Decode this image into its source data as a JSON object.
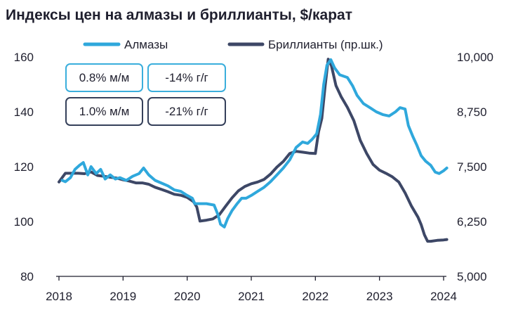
{
  "title": "Индексы цен на алмазы и бриллианты, $/карат",
  "colors": {
    "diamonds": "#2fa8dc",
    "polished": "#3d4766",
    "axis": "#1f1f2e"
  },
  "boxes": [
    {
      "text": "0.8% м/м",
      "series": "diamonds"
    },
    {
      "text": "-14% г/г",
      "series": "diamonds"
    },
    {
      "text": "1.0% м/м",
      "series": "polished"
    },
    {
      "text": "-21% г/г",
      "series": "polished"
    }
  ],
  "chart_data": {
    "type": "line",
    "title": "Индексы цен на алмазы и бриллианты, $/карат",
    "x_ticks": [
      "2018",
      "2019",
      "2020",
      "2021",
      "2022",
      "2023",
      "2024"
    ],
    "y_left": {
      "ticks": [
        "80",
        "100",
        "120",
        "140",
        "160"
      ],
      "range": [
        80,
        160
      ]
    },
    "y_right": {
      "ticks": [
        "5,000",
        "6,250",
        "7,500",
        "8,750",
        "10,000"
      ],
      "range": [
        5000,
        10000
      ]
    },
    "grid": false,
    "legend": "top",
    "series": [
      {
        "name": "Алмазы",
        "axis": "left",
        "color": "#2fa8dc",
        "points": [
          [
            2018.05,
            115
          ],
          [
            2018.1,
            114.5
          ],
          [
            2018.18,
            116
          ],
          [
            2018.25,
            119
          ],
          [
            2018.32,
            120.5
          ],
          [
            2018.38,
            121.5
          ],
          [
            2018.45,
            117
          ],
          [
            2018.5,
            120
          ],
          [
            2018.58,
            117.5
          ],
          [
            2018.65,
            119
          ],
          [
            2018.72,
            115.5
          ],
          [
            2018.8,
            117
          ],
          [
            2018.88,
            115.5
          ],
          [
            2018.95,
            116
          ],
          [
            2019.05,
            115
          ],
          [
            2019.15,
            116.5
          ],
          [
            2019.25,
            117.5
          ],
          [
            2019.32,
            119.5
          ],
          [
            2019.4,
            117
          ],
          [
            2019.5,
            115
          ],
          [
            2019.6,
            114
          ],
          [
            2019.7,
            113
          ],
          [
            2019.8,
            111.5
          ],
          [
            2019.9,
            111
          ],
          [
            2020.0,
            109.5
          ],
          [
            2020.08,
            108.5
          ],
          [
            2020.12,
            106.5
          ],
          [
            2020.2,
            106.5
          ],
          [
            2020.3,
            106.5
          ],
          [
            2020.42,
            106
          ],
          [
            2020.48,
            102.5
          ],
          [
            2020.52,
            99
          ],
          [
            2020.58,
            98
          ],
          [
            2020.63,
            101
          ],
          [
            2020.7,
            104
          ],
          [
            2020.78,
            106.5
          ],
          [
            2020.85,
            108.5
          ],
          [
            2020.92,
            108.5
          ],
          [
            2021.0,
            109.5
          ],
          [
            2021.1,
            111
          ],
          [
            2021.2,
            112.5
          ],
          [
            2021.3,
            114.5
          ],
          [
            2021.4,
            117
          ],
          [
            2021.5,
            119.5
          ],
          [
            2021.6,
            122.5
          ],
          [
            2021.7,
            127
          ],
          [
            2021.8,
            129
          ],
          [
            2021.88,
            128.5
          ],
          [
            2021.95,
            130
          ],
          [
            2022.02,
            132
          ],
          [
            2022.08,
            139
          ],
          [
            2022.13,
            150
          ],
          [
            2022.18,
            157
          ],
          [
            2022.24,
            159
          ],
          [
            2022.3,
            156
          ],
          [
            2022.38,
            153.5
          ],
          [
            2022.5,
            152.5
          ],
          [
            2022.58,
            149.5
          ],
          [
            2022.65,
            146
          ],
          [
            2022.75,
            143
          ],
          [
            2022.85,
            141.5
          ],
          [
            2022.95,
            140
          ],
          [
            2023.05,
            139
          ],
          [
            2023.15,
            138.5
          ],
          [
            2023.25,
            140
          ],
          [
            2023.32,
            141.5
          ],
          [
            2023.4,
            141
          ],
          [
            2023.45,
            135
          ],
          [
            2023.52,
            131
          ],
          [
            2023.58,
            128
          ],
          [
            2023.65,
            124
          ],
          [
            2023.72,
            122
          ],
          [
            2023.8,
            120.5
          ],
          [
            2023.87,
            118
          ],
          [
            2023.93,
            117.5
          ],
          [
            2024.0,
            118.5
          ],
          [
            2024.05,
            119.5
          ]
        ]
      },
      {
        "name": "Бриллианты (пр.шк.)",
        "axis": "right",
        "color": "#3d4766",
        "points": [
          [
            2018.0,
            7150
          ],
          [
            2018.1,
            7350
          ],
          [
            2018.2,
            7350
          ],
          [
            2018.3,
            7350
          ],
          [
            2018.4,
            7340
          ],
          [
            2018.5,
            7380
          ],
          [
            2018.6,
            7300
          ],
          [
            2018.7,
            7280
          ],
          [
            2018.8,
            7260
          ],
          [
            2018.9,
            7240
          ],
          [
            2019.0,
            7200
          ],
          [
            2019.1,
            7170
          ],
          [
            2019.2,
            7130
          ],
          [
            2019.3,
            7130
          ],
          [
            2019.4,
            7100
          ],
          [
            2019.5,
            7030
          ],
          [
            2019.6,
            6980
          ],
          [
            2019.7,
            6930
          ],
          [
            2019.8,
            6870
          ],
          [
            2019.9,
            6850
          ],
          [
            2020.0,
            6800
          ],
          [
            2020.1,
            6700
          ],
          [
            2020.15,
            6580
          ],
          [
            2020.2,
            6260
          ],
          [
            2020.3,
            6280
          ],
          [
            2020.4,
            6310
          ],
          [
            2020.5,
            6400
          ],
          [
            2020.6,
            6600
          ],
          [
            2020.7,
            6790
          ],
          [
            2020.8,
            6950
          ],
          [
            2020.9,
            7050
          ],
          [
            2021.0,
            7110
          ],
          [
            2021.1,
            7150
          ],
          [
            2021.2,
            7210
          ],
          [
            2021.3,
            7330
          ],
          [
            2021.4,
            7490
          ],
          [
            2021.5,
            7620
          ],
          [
            2021.6,
            7800
          ],
          [
            2021.7,
            7850
          ],
          [
            2021.8,
            7830
          ],
          [
            2021.9,
            7810
          ],
          [
            2022.0,
            7800
          ],
          [
            2022.05,
            8300
          ],
          [
            2022.1,
            8600
          ],
          [
            2022.15,
            9300
          ],
          [
            2022.2,
            9950
          ],
          [
            2022.25,
            9800
          ],
          [
            2022.32,
            9350
          ],
          [
            2022.4,
            9100
          ],
          [
            2022.5,
            8850
          ],
          [
            2022.6,
            8550
          ],
          [
            2022.7,
            8100
          ],
          [
            2022.8,
            7800
          ],
          [
            2022.9,
            7550
          ],
          [
            2023.0,
            7420
          ],
          [
            2023.1,
            7350
          ],
          [
            2023.2,
            7270
          ],
          [
            2023.3,
            7150
          ],
          [
            2023.4,
            6900
          ],
          [
            2023.5,
            6600
          ],
          [
            2023.6,
            6350
          ],
          [
            2023.65,
            6180
          ],
          [
            2023.7,
            5950
          ],
          [
            2023.75,
            5800
          ],
          [
            2023.8,
            5800
          ],
          [
            2023.9,
            5820
          ],
          [
            2024.0,
            5830
          ],
          [
            2024.05,
            5840
          ]
        ]
      }
    ]
  }
}
